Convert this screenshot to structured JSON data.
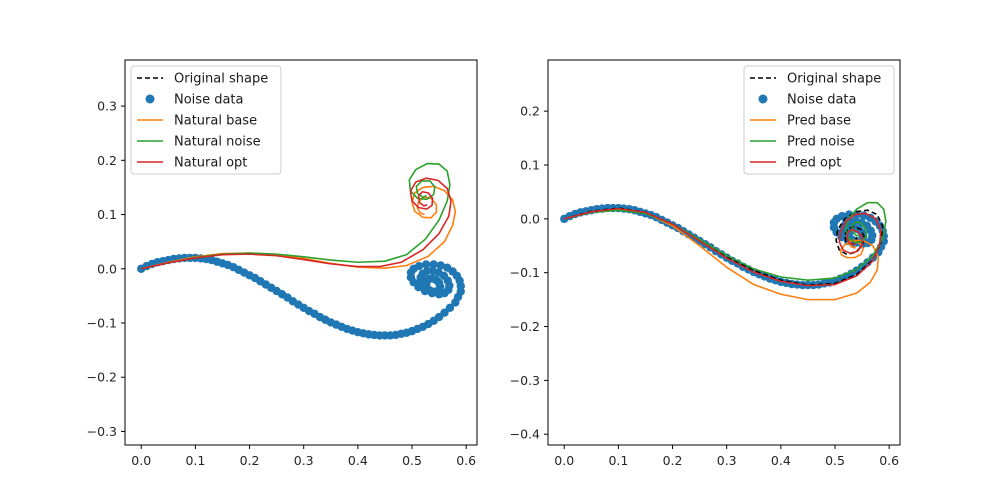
{
  "colors": {
    "original": "#000000",
    "noise": "#1f77b4",
    "base": "#ff7f0e",
    "noise_fit": "#2ca02c",
    "opt": "#d62728",
    "legend_border": "#cccccc"
  },
  "chart_data": [
    {
      "type": "scatter",
      "title": "",
      "xlabel": "",
      "ylabel": "",
      "xlim": [
        -0.03,
        0.62
      ],
      "ylim": [
        -0.325,
        0.385
      ],
      "xticks": [
        "0.0",
        "0.1",
        "0.2",
        "0.3",
        "0.4",
        "0.5",
        "0.6"
      ],
      "yticks": [
        "−0.3",
        "−0.2",
        "−0.1",
        "0.0",
        "0.1",
        "0.2",
        "0.3"
      ],
      "grid": false,
      "legend_position": "top-left",
      "legend": {
        "original": "Original shape",
        "noise": "Noise data",
        "base": "Natural base",
        "noise_fit": "Natural noise",
        "opt": "Natural opt"
      },
      "noise_points": {
        "x": [
          0.0,
          0.01,
          0.02,
          0.03,
          0.04,
          0.05,
          0.06,
          0.07,
          0.08,
          0.09,
          0.1,
          0.11,
          0.12,
          0.13,
          0.14,
          0.15,
          0.16,
          0.17,
          0.18,
          0.19,
          0.2,
          0.21,
          0.22,
          0.23,
          0.24,
          0.25,
          0.26,
          0.27,
          0.28,
          0.29,
          0.3,
          0.31,
          0.32,
          0.33,
          0.34,
          0.35,
          0.36,
          0.37,
          0.38,
          0.39,
          0.4,
          0.41,
          0.42,
          0.43,
          0.44,
          0.45,
          0.46,
          0.47,
          0.48,
          0.49,
          0.5,
          0.51,
          0.52,
          0.53,
          0.54,
          0.55,
          0.56,
          0.57,
          0.58,
          0.585,
          0.59,
          0.59,
          0.588,
          0.583,
          0.575,
          0.565,
          0.553,
          0.54,
          0.526,
          0.513,
          0.503,
          0.498,
          0.498,
          0.503,
          0.512,
          0.524,
          0.537,
          0.55,
          0.56,
          0.567,
          0.569,
          0.566,
          0.559,
          0.549,
          0.538,
          0.528,
          0.52,
          0.516,
          0.516,
          0.52,
          0.527,
          0.536,
          0.544,
          0.55,
          0.552,
          0.55,
          0.545,
          0.538,
          0.531,
          0.527,
          0.526,
          0.528,
          0.533
        ],
        "y": [
          0.0,
          0.005,
          0.009,
          0.012,
          0.014,
          0.016,
          0.018,
          0.019,
          0.02,
          0.02,
          0.02,
          0.019,
          0.018,
          0.016,
          0.013,
          0.01,
          0.007,
          0.003,
          -0.002,
          -0.007,
          -0.012,
          -0.017,
          -0.023,
          -0.029,
          -0.035,
          -0.041,
          -0.047,
          -0.053,
          -0.06,
          -0.066,
          -0.072,
          -0.078,
          -0.083,
          -0.089,
          -0.094,
          -0.099,
          -0.103,
          -0.107,
          -0.111,
          -0.114,
          -0.117,
          -0.119,
          -0.121,
          -0.122,
          -0.123,
          -0.123,
          -0.123,
          -0.122,
          -0.12,
          -0.118,
          -0.115,
          -0.111,
          -0.107,
          -0.102,
          -0.096,
          -0.089,
          -0.081,
          -0.072,
          -0.062,
          -0.052,
          -0.042,
          -0.032,
          -0.022,
          -0.013,
          -0.005,
          0.002,
          0.006,
          0.008,
          0.008,
          0.005,
          0.0,
          -0.007,
          -0.016,
          -0.025,
          -0.034,
          -0.041,
          -0.045,
          -0.047,
          -0.045,
          -0.039,
          -0.031,
          -0.022,
          -0.013,
          -0.007,
          -0.004,
          -0.004,
          -0.009,
          -0.016,
          -0.024,
          -0.032,
          -0.038,
          -0.042,
          -0.042,
          -0.039,
          -0.033,
          -0.026,
          -0.021,
          -0.018,
          -0.019,
          -0.024,
          -0.03,
          -0.036,
          -0.04
        ]
      },
      "curves": {
        "base": {
          "x": [
            0.0,
            0.05,
            0.1,
            0.15,
            0.2,
            0.25,
            0.3,
            0.35,
            0.4,
            0.45,
            0.49,
            0.53,
            0.56,
            0.575,
            0.58,
            0.575,
            0.56,
            0.54,
            0.52,
            0.505,
            0.5,
            0.505,
            0.52,
            0.535,
            0.545,
            0.545,
            0.535,
            0.522,
            0.512,
            0.51,
            0.515,
            0.523
          ],
          "y": [
            0.0,
            0.012,
            0.022,
            0.028,
            0.029,
            0.026,
            0.019,
            0.01,
            0.003,
            0.001,
            0.006,
            0.023,
            0.05,
            0.08,
            0.105,
            0.127,
            0.144,
            0.152,
            0.15,
            0.14,
            0.122,
            0.106,
            0.095,
            0.094,
            0.104,
            0.118,
            0.13,
            0.132,
            0.124,
            0.112,
            0.103,
            0.1
          ]
        },
        "noise_fit": {
          "x": [
            0.0,
            0.05,
            0.1,
            0.15,
            0.2,
            0.25,
            0.3,
            0.35,
            0.4,
            0.45,
            0.49,
            0.525,
            0.55,
            0.565,
            0.57,
            0.565,
            0.55,
            0.528,
            0.507,
            0.495,
            0.497,
            0.51,
            0.527,
            0.54,
            0.542,
            0.533,
            0.518,
            0.508,
            0.51,
            0.52,
            0.527
          ],
          "y": [
            0.0,
            0.011,
            0.021,
            0.027,
            0.029,
            0.027,
            0.022,
            0.016,
            0.012,
            0.014,
            0.026,
            0.055,
            0.09,
            0.125,
            0.155,
            0.18,
            0.193,
            0.194,
            0.183,
            0.164,
            0.144,
            0.13,
            0.128,
            0.137,
            0.151,
            0.162,
            0.162,
            0.152,
            0.139,
            0.132,
            0.135
          ]
        },
        "opt": {
          "x": [
            0.0,
            0.05,
            0.1,
            0.15,
            0.2,
            0.25,
            0.3,
            0.35,
            0.4,
            0.44,
            0.48,
            0.52,
            0.55,
            0.568,
            0.572,
            0.565,
            0.548,
            0.526,
            0.507,
            0.497,
            0.5,
            0.512,
            0.527,
            0.537,
            0.538,
            0.53,
            0.519,
            0.512,
            0.514,
            0.522,
            0.528
          ],
          "y": [
            0.0,
            0.011,
            0.02,
            0.026,
            0.027,
            0.024,
            0.017,
            0.009,
            0.004,
            0.004,
            0.012,
            0.035,
            0.065,
            0.097,
            0.125,
            0.148,
            0.163,
            0.167,
            0.16,
            0.143,
            0.125,
            0.113,
            0.11,
            0.117,
            0.13,
            0.14,
            0.142,
            0.134,
            0.122,
            0.116,
            0.118
          ]
        }
      }
    },
    {
      "type": "scatter",
      "title": "",
      "xlabel": "",
      "ylabel": "",
      "xlim": [
        -0.03,
        0.62
      ],
      "ylim": [
        -0.42,
        0.295
      ],
      "xticks": [
        "0.0",
        "0.1",
        "0.2",
        "0.3",
        "0.4",
        "0.5",
        "0.6"
      ],
      "yticks": [
        "−0.4",
        "−0.3",
        "−0.2",
        "−0.1",
        "0.0",
        "0.1",
        "0.2"
      ],
      "grid": false,
      "legend_position": "top-right",
      "legend": {
        "original": "Original shape",
        "noise": "Noise data",
        "base": "Pred base",
        "noise_fit": "Pred noise",
        "opt": "Pred opt"
      },
      "noise_points": {
        "x": [
          0.0,
          0.01,
          0.02,
          0.03,
          0.04,
          0.05,
          0.06,
          0.07,
          0.08,
          0.09,
          0.1,
          0.11,
          0.12,
          0.13,
          0.14,
          0.15,
          0.16,
          0.17,
          0.18,
          0.19,
          0.2,
          0.21,
          0.22,
          0.23,
          0.24,
          0.25,
          0.26,
          0.27,
          0.28,
          0.29,
          0.3,
          0.31,
          0.32,
          0.33,
          0.34,
          0.35,
          0.36,
          0.37,
          0.38,
          0.39,
          0.4,
          0.41,
          0.42,
          0.43,
          0.44,
          0.45,
          0.46,
          0.47,
          0.48,
          0.49,
          0.5,
          0.51,
          0.52,
          0.53,
          0.54,
          0.55,
          0.56,
          0.57,
          0.58,
          0.585,
          0.59,
          0.59,
          0.588,
          0.583,
          0.575,
          0.565,
          0.553,
          0.54,
          0.526,
          0.513,
          0.503,
          0.498,
          0.498,
          0.503,
          0.512,
          0.524,
          0.537,
          0.55,
          0.56,
          0.567,
          0.569,
          0.566,
          0.559,
          0.549,
          0.538,
          0.528,
          0.52,
          0.516,
          0.516,
          0.52,
          0.527,
          0.536,
          0.544,
          0.55,
          0.552,
          0.55,
          0.545,
          0.538,
          0.531,
          0.527,
          0.526,
          0.528,
          0.533
        ],
        "y": [
          0.0,
          0.005,
          0.009,
          0.012,
          0.014,
          0.016,
          0.018,
          0.019,
          0.02,
          0.02,
          0.02,
          0.019,
          0.018,
          0.016,
          0.013,
          0.01,
          0.007,
          0.003,
          -0.002,
          -0.007,
          -0.012,
          -0.017,
          -0.023,
          -0.029,
          -0.035,
          -0.041,
          -0.047,
          -0.053,
          -0.06,
          -0.066,
          -0.072,
          -0.078,
          -0.083,
          -0.089,
          -0.094,
          -0.099,
          -0.103,
          -0.107,
          -0.111,
          -0.114,
          -0.117,
          -0.119,
          -0.121,
          -0.122,
          -0.123,
          -0.123,
          -0.123,
          -0.122,
          -0.12,
          -0.118,
          -0.115,
          -0.111,
          -0.107,
          -0.102,
          -0.096,
          -0.089,
          -0.081,
          -0.072,
          -0.062,
          -0.052,
          -0.042,
          -0.032,
          -0.022,
          -0.013,
          -0.005,
          0.002,
          0.006,
          0.008,
          0.008,
          0.005,
          0.0,
          -0.007,
          -0.016,
          -0.025,
          -0.034,
          -0.041,
          -0.045,
          -0.047,
          -0.045,
          -0.039,
          -0.031,
          -0.022,
          -0.013,
          -0.007,
          -0.004,
          -0.004,
          -0.009,
          -0.016,
          -0.024,
          -0.032,
          -0.038,
          -0.042,
          -0.042,
          -0.039,
          -0.033,
          -0.026,
          -0.021,
          -0.018,
          -0.019,
          -0.024,
          -0.03,
          -0.036,
          -0.04
        ]
      },
      "curves": {
        "original": {
          "x": [
            0.0,
            0.05,
            0.1,
            0.15,
            0.2,
            0.25,
            0.3,
            0.35,
            0.4,
            0.45,
            0.5,
            0.54,
            0.57,
            0.585,
            0.588,
            0.578,
            0.56,
            0.538,
            0.518,
            0.505,
            0.502,
            0.508,
            0.522,
            0.538,
            0.55,
            0.554,
            0.548,
            0.536,
            0.524,
            0.518,
            0.52,
            0.528,
            0.536,
            0.54,
            0.536
          ],
          "y": [
            0.0,
            0.014,
            0.02,
            0.012,
            -0.01,
            -0.04,
            -0.07,
            -0.096,
            -0.114,
            -0.123,
            -0.12,
            -0.103,
            -0.076,
            -0.044,
            -0.014,
            0.008,
            0.016,
            0.013,
            0.0,
            -0.02,
            -0.04,
            -0.058,
            -0.066,
            -0.062,
            -0.05,
            -0.034,
            -0.02,
            -0.014,
            -0.018,
            -0.03,
            -0.042,
            -0.048,
            -0.045,
            -0.036,
            -0.03
          ]
        },
        "base": {
          "x": [
            0.0,
            0.05,
            0.1,
            0.15,
            0.2,
            0.25,
            0.3,
            0.35,
            0.4,
            0.45,
            0.5,
            0.54,
            0.565,
            0.578,
            0.58,
            0.57,
            0.552,
            0.533,
            0.518,
            0.51,
            0.512,
            0.522,
            0.536,
            0.548,
            0.552,
            0.546,
            0.536,
            0.528,
            0.526,
            0.53,
            0.536,
            0.538
          ],
          "y": [
            0.0,
            0.013,
            0.018,
            0.011,
            -0.013,
            -0.05,
            -0.09,
            -0.122,
            -0.14,
            -0.15,
            -0.15,
            -0.138,
            -0.118,
            -0.095,
            -0.071,
            -0.05,
            -0.04,
            -0.04,
            -0.048,
            -0.058,
            -0.067,
            -0.072,
            -0.072,
            -0.066,
            -0.056,
            -0.046,
            -0.04,
            -0.04,
            -0.046,
            -0.052,
            -0.054,
            -0.05
          ]
        },
        "noise_fit": {
          "x": [
            0.0,
            0.05,
            0.1,
            0.15,
            0.2,
            0.25,
            0.3,
            0.35,
            0.4,
            0.45,
            0.5,
            0.54,
            0.57,
            0.588,
            0.594,
            0.59,
            0.578,
            0.56,
            0.54,
            0.525,
            0.52,
            0.525,
            0.537,
            0.55,
            0.558,
            0.557,
            0.548,
            0.538,
            0.532,
            0.532,
            0.538,
            0.544
          ],
          "y": [
            0.0,
            0.012,
            0.016,
            0.01,
            -0.01,
            -0.038,
            -0.068,
            -0.093,
            -0.108,
            -0.114,
            -0.11,
            -0.094,
            -0.068,
            -0.036,
            -0.005,
            0.018,
            0.03,
            0.03,
            0.018,
            0.0,
            -0.02,
            -0.036,
            -0.044,
            -0.042,
            -0.032,
            -0.018,
            -0.008,
            -0.006,
            -0.012,
            -0.022,
            -0.03,
            -0.032
          ]
        },
        "opt": {
          "x": [
            0.0,
            0.05,
            0.1,
            0.15,
            0.2,
            0.25,
            0.3,
            0.35,
            0.4,
            0.45,
            0.5,
            0.54,
            0.568,
            0.582,
            0.585,
            0.575,
            0.557,
            0.537,
            0.52,
            0.51,
            0.508,
            0.515,
            0.528,
            0.542,
            0.55,
            0.55,
            0.542,
            0.532,
            0.524,
            0.522,
            0.526,
            0.533,
            0.538
          ],
          "y": [
            0.0,
            0.013,
            0.019,
            0.012,
            -0.01,
            -0.041,
            -0.073,
            -0.099,
            -0.116,
            -0.124,
            -0.122,
            -0.106,
            -0.08,
            -0.05,
            -0.022,
            0.0,
            0.01,
            0.008,
            -0.005,
            -0.024,
            -0.043,
            -0.058,
            -0.064,
            -0.06,
            -0.048,
            -0.034,
            -0.024,
            -0.02,
            -0.025,
            -0.035,
            -0.044,
            -0.048,
            -0.045
          ]
        }
      }
    }
  ]
}
